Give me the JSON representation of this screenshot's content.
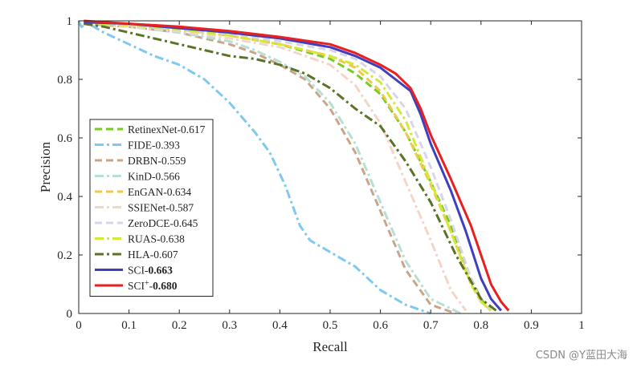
{
  "chart_data": {
    "type": "line",
    "xlabel": "Recall",
    "ylabel": "Precision",
    "xlim": [
      0,
      1
    ],
    "ylim": [
      0,
      1
    ],
    "xticks": [
      "0",
      "0.1",
      "0.2",
      "0.3",
      "0.4",
      "0.5",
      "0.6",
      "0.7",
      "0.8",
      "0.9",
      "1"
    ],
    "yticks": [
      "0",
      "0.2",
      "0.4",
      "0.6",
      "0.8",
      "1"
    ],
    "grid": false,
    "legend_position": "left-bottom",
    "series": [
      {
        "name": "RetinexNet-0.617",
        "color": "#77cc22",
        "dash": "dash",
        "x": [
          0.01,
          0.1,
          0.2,
          0.3,
          0.4,
          0.5,
          0.55,
          0.6,
          0.65,
          0.7,
          0.74,
          0.78,
          0.8,
          0.82
        ],
        "y": [
          0.99,
          0.985,
          0.97,
          0.95,
          0.92,
          0.87,
          0.82,
          0.75,
          0.62,
          0.45,
          0.3,
          0.12,
          0.05,
          0.01
        ]
      },
      {
        "name": "FIDE-0.393",
        "color": "#7fc9f0",
        "dash": "dashdot",
        "x": [
          0.0,
          0.005,
          0.02,
          0.05,
          0.1,
          0.15,
          0.2,
          0.25,
          0.3,
          0.35,
          0.38,
          0.41,
          0.44,
          0.46,
          0.5,
          0.55,
          0.6,
          0.65,
          0.7
        ],
        "y": [
          1.0,
          0.98,
          0.99,
          0.96,
          0.92,
          0.88,
          0.85,
          0.8,
          0.72,
          0.62,
          0.55,
          0.44,
          0.3,
          0.25,
          0.21,
          0.16,
          0.08,
          0.03,
          0.0
        ]
      },
      {
        "name": "DRBN-0.559",
        "color": "#c9a58a",
        "dash": "dash",
        "x": [
          0.01,
          0.1,
          0.2,
          0.3,
          0.35,
          0.4,
          0.45,
          0.5,
          0.55,
          0.6,
          0.65,
          0.7,
          0.75
        ],
        "y": [
          0.99,
          0.98,
          0.96,
          0.92,
          0.89,
          0.85,
          0.8,
          0.7,
          0.55,
          0.35,
          0.15,
          0.03,
          0.0
        ]
      },
      {
        "name": "KinD-0.566",
        "color": "#b7dfd3",
        "dash": "dashdot",
        "x": [
          0.01,
          0.1,
          0.2,
          0.3,
          0.35,
          0.4,
          0.45,
          0.5,
          0.55,
          0.6,
          0.65,
          0.7,
          0.76
        ],
        "y": [
          0.99,
          0.98,
          0.96,
          0.93,
          0.9,
          0.86,
          0.81,
          0.72,
          0.58,
          0.38,
          0.18,
          0.05,
          0.0
        ]
      },
      {
        "name": "EnGAN-0.634",
        "color": "#f0c84a",
        "dash": "dash",
        "x": [
          0.01,
          0.1,
          0.2,
          0.3,
          0.4,
          0.5,
          0.55,
          0.6,
          0.65,
          0.7,
          0.74,
          0.78,
          0.8,
          0.82
        ],
        "y": [
          0.99,
          0.985,
          0.97,
          0.95,
          0.92,
          0.88,
          0.84,
          0.76,
          0.62,
          0.44,
          0.28,
          0.1,
          0.04,
          0.01
        ]
      },
      {
        "name": "SSIENet-0.587",
        "color": "#f5d5c8",
        "dash": "dashdot",
        "x": [
          0.01,
          0.1,
          0.2,
          0.3,
          0.4,
          0.5,
          0.55,
          0.6,
          0.65,
          0.7,
          0.74,
          0.77
        ],
        "y": [
          0.99,
          0.98,
          0.965,
          0.94,
          0.91,
          0.85,
          0.78,
          0.65,
          0.45,
          0.25,
          0.08,
          0.01
        ]
      },
      {
        "name": "ZeroDCE-0.645",
        "color": "#d8d4ec",
        "dash": "dash",
        "x": [
          0.01,
          0.1,
          0.2,
          0.3,
          0.4,
          0.5,
          0.55,
          0.6,
          0.65,
          0.7,
          0.74,
          0.78,
          0.8,
          0.82
        ],
        "y": [
          0.995,
          0.985,
          0.97,
          0.955,
          0.93,
          0.9,
          0.87,
          0.81,
          0.7,
          0.5,
          0.32,
          0.12,
          0.04,
          0.01
        ]
      },
      {
        "name": "RUAS-0.638",
        "color": "#d4e83a",
        "dash": "dashdot",
        "x": [
          0.01,
          0.1,
          0.2,
          0.3,
          0.4,
          0.5,
          0.55,
          0.6,
          0.65,
          0.7,
          0.74,
          0.78,
          0.8,
          0.82
        ],
        "y": [
          0.99,
          0.985,
          0.97,
          0.95,
          0.92,
          0.88,
          0.85,
          0.79,
          0.66,
          0.45,
          0.28,
          0.1,
          0.04,
          0.01
        ]
      },
      {
        "name": "HLA-0.607",
        "color": "#5a7326",
        "dash": "dashdot",
        "x": [
          0.01,
          0.05,
          0.1,
          0.15,
          0.2,
          0.25,
          0.3,
          0.35,
          0.4,
          0.45,
          0.5,
          0.55,
          0.6,
          0.65,
          0.7,
          0.75,
          0.8,
          0.83
        ],
        "y": [
          0.99,
          0.98,
          0.96,
          0.94,
          0.92,
          0.9,
          0.88,
          0.87,
          0.85,
          0.82,
          0.77,
          0.7,
          0.64,
          0.52,
          0.38,
          0.2,
          0.05,
          0.01
        ]
      },
      {
        "name": "SCI-0.663",
        "color": "#3f3fbf",
        "dash": "solid",
        "x": [
          0.01,
          0.1,
          0.2,
          0.3,
          0.4,
          0.5,
          0.55,
          0.6,
          0.63,
          0.66,
          0.68,
          0.7,
          0.74,
          0.77,
          0.8,
          0.82,
          0.84
        ],
        "y": [
          0.995,
          0.99,
          0.975,
          0.96,
          0.94,
          0.91,
          0.88,
          0.84,
          0.8,
          0.76,
          0.68,
          0.58,
          0.42,
          0.28,
          0.12,
          0.05,
          0.01
        ]
      },
      {
        "name": "SCI+-0.680",
        "color": "#ea1f1f",
        "dash": "solid",
        "x": [
          0.01,
          0.1,
          0.2,
          0.3,
          0.4,
          0.5,
          0.55,
          0.6,
          0.63,
          0.66,
          0.68,
          0.7,
          0.74,
          0.78,
          0.82,
          0.84,
          0.855
        ],
        "y": [
          1.0,
          0.99,
          0.98,
          0.965,
          0.945,
          0.92,
          0.89,
          0.85,
          0.82,
          0.77,
          0.7,
          0.61,
          0.46,
          0.3,
          0.1,
          0.04,
          0.01
        ]
      }
    ]
  },
  "legend": [
    {
      "prefix": "RetinexNet-0.617",
      "sup": "",
      "bold": ""
    },
    {
      "prefix": "FIDE-0.393",
      "sup": "",
      "bold": ""
    },
    {
      "prefix": "DRBN-0.559",
      "sup": "",
      "bold": ""
    },
    {
      "prefix": "KinD-0.566",
      "sup": "",
      "bold": ""
    },
    {
      "prefix": "EnGAN-0.634",
      "sup": "",
      "bold": ""
    },
    {
      "prefix": "SSIENet-0.587",
      "sup": "",
      "bold": ""
    },
    {
      "prefix": "ZeroDCE-0.645",
      "sup": "",
      "bold": ""
    },
    {
      "prefix": "RUAS-0.638",
      "sup": "",
      "bold": ""
    },
    {
      "prefix": "HLA-0.607",
      "sup": "",
      "bold": ""
    },
    {
      "prefix": "SCI-",
      "sup": "",
      "bold": "0.663"
    },
    {
      "prefix": "SCI",
      "sup": "+",
      "bold": "0.680"
    }
  ],
  "watermark": "CSDN @Y蓝田大海"
}
